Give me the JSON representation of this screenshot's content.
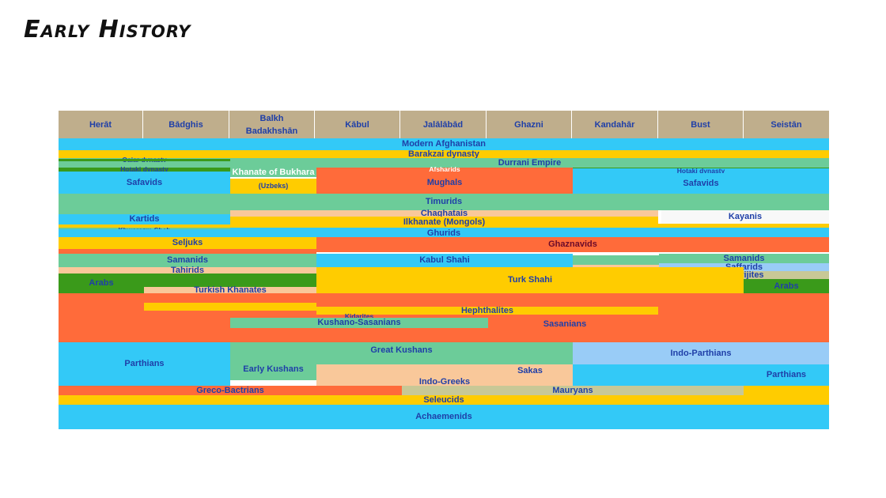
{
  "page": {
    "title": "Early History"
  },
  "colors": {
    "header": "#bfae8c",
    "header_text": "#1f3fa8",
    "label_text": "#1f3fa8",
    "sky_blue": "#33c9f7",
    "yellow": "#ffcc00",
    "orange": "#ff6b3a",
    "mint_green": "#6ccc99",
    "dark_green": "#3a9a1a",
    "peach": "#f9c89a",
    "light_blue": "#99ccf7",
    "khaki": "#c8c896",
    "white": "#f8f8f8"
  },
  "regions": [
    "Herāt",
    "Bādghis",
    "Balkh Badakhshān",
    "Kābul",
    "Jalālābād",
    "Ghazni",
    "Kandahār",
    "Bust",
    "Seistān"
  ],
  "region_lines": [
    [
      "Herāt"
    ],
    [
      "Bādghis"
    ],
    [
      "Balkh",
      "Badakhshān"
    ],
    [
      "Kābul"
    ],
    [
      "Jalālābād"
    ],
    [
      "Ghazni"
    ],
    [
      "Kandahār"
    ],
    [
      "Bust"
    ],
    [
      "Seistān"
    ]
  ],
  "labels": {
    "modern_afghanistan": "Modern Afghanistan",
    "barakzai": "Barakzai dynasty",
    "qajar": "Qajar dynasty",
    "durrani": "Durrani Empire",
    "hotaki_west": "Hotaki dynasty",
    "khanate_bukhara": "Khanate of Bukhara",
    "afsharids": "Afsharids",
    "hotaki_east": "Hotaki dynasty",
    "safavids_west": "Safavids",
    "uzbeks": "(Uzbeks)",
    "mughals": "Mughals",
    "safavids_east": "Safavids",
    "timurids": "Timurids",
    "kartids": "Kartids",
    "chaghatais": "Chaghatais",
    "kayanis": "Kayanis",
    "ilkhanate": "Ilkhanate (Mongols)",
    "khwarazm": "Khwarazm-Shah",
    "ghurids": "Ghurids",
    "seljuks": "Seljuks",
    "ghaznavids": "Ghaznavids",
    "samanids_west": "Samanids",
    "kabul_shahi": "Kabul Shahi",
    "samanids_east": "Samanids",
    "saffarids": "Saffarids",
    "tahirids": "Tahirids",
    "kharijites": "Kharijites",
    "arabs_west": "Arabs",
    "turk_shahi": "Turk Shahi",
    "arabs_east": "Arabs",
    "turkish_khanates": "Turkish Khanates",
    "hephthalites": "Hephthalites",
    "kidarites": "Kidarites",
    "kushano_sasanians": "Kushano-Sasanians",
    "sasanians": "Sasanians",
    "great_kushans": "Great Kushans",
    "parthians_west": "Parthians",
    "indo_parthians": "Indo-Parthians",
    "early_kushans": "Early Kushans",
    "sakas": "Sakas",
    "parthians_east": "Parthians",
    "indo_greeks": "Indo-Greeks",
    "greco_bactrians": "Greco-Bactrians",
    "mauryans": "Mauryans",
    "seleucids": "Seleucids",
    "achaemenids": "Achaemenids"
  }
}
